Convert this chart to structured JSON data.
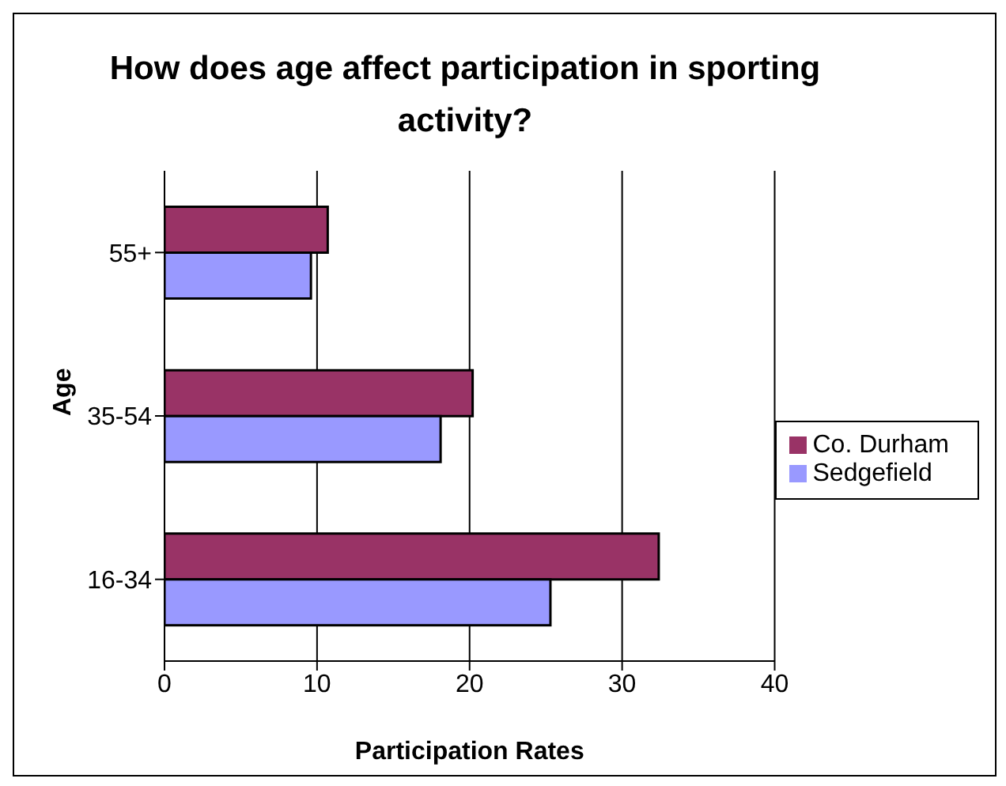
{
  "chart_data": {
    "type": "bar",
    "orientation": "horizontal",
    "title": "How does age affect participation in sporting activity?",
    "xlabel": "Participation Rates",
    "ylabel": "Age",
    "categories": [
      "55+",
      "35-54",
      "16-34"
    ],
    "series": [
      {
        "name": "Co. Durham",
        "color": "#993366",
        "values": [
          10.7,
          20.2,
          32.4
        ]
      },
      {
        "name": "Sedgefield",
        "color": "#9999ff",
        "values": [
          9.6,
          18.1,
          25.3
        ]
      }
    ],
    "xlim": [
      0,
      40
    ],
    "xticks": [
      0,
      10,
      20,
      30,
      40
    ],
    "grid": "x",
    "legend": "right"
  }
}
